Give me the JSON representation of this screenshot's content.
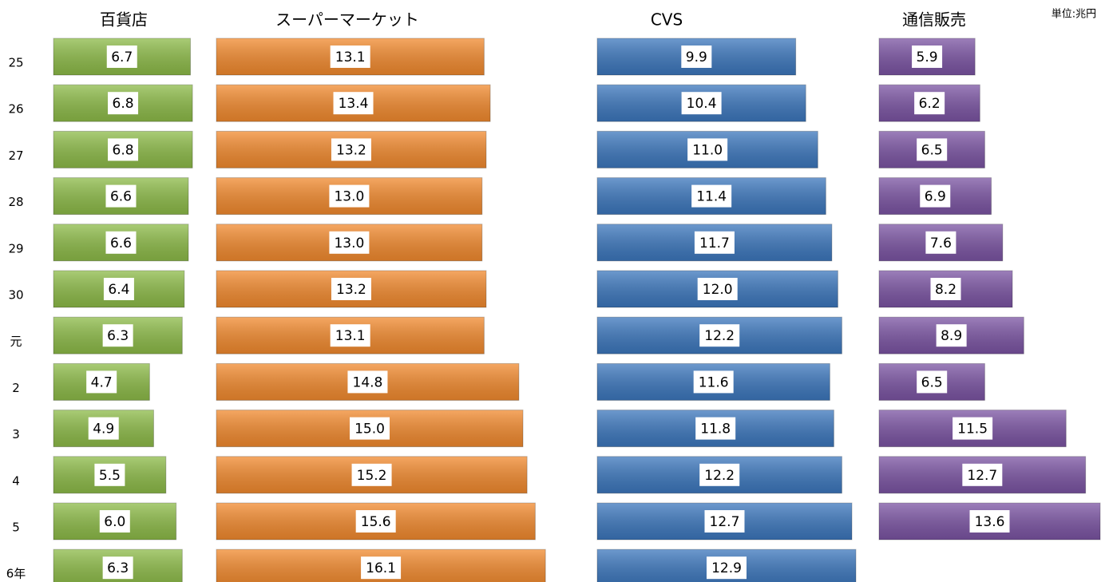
{
  "chart_data": {
    "type": "bar",
    "orientation": "horizontal",
    "unit_label": "単位:兆円",
    "categories": [
      "25",
      "26",
      "27",
      "28",
      "29",
      "30",
      "元",
      "2",
      "3",
      "4",
      "5",
      "6年"
    ],
    "series": [
      {
        "name": "百貨店",
        "color": "#8dbb48",
        "values": [
          6.7,
          6.8,
          6.8,
          6.6,
          6.6,
          6.4,
          6.3,
          4.7,
          4.9,
          5.5,
          6.0,
          6.3
        ],
        "value_labels": [
          "6.7",
          "6.8",
          "6.8",
          "6.6",
          "6.6",
          "6.4",
          "6.3",
          "4.7",
          "4.9",
          "5.5",
          "6.0",
          "6.3"
        ]
      },
      {
        "name": "スーパーマーケット",
        "color": "#f28a2e",
        "values": [
          13.1,
          13.4,
          13.2,
          13.0,
          13.0,
          13.2,
          13.1,
          14.8,
          15.0,
          15.2,
          15.6,
          16.1
        ],
        "value_labels": [
          "13.1",
          "13.4",
          "13.2",
          "13.0",
          "13.0",
          "13.2",
          "13.1",
          "14.8",
          "15.0",
          "15.2",
          "15.6",
          "16.1"
        ]
      },
      {
        "name": "CVS",
        "color": "#3c77bd",
        "values": [
          9.9,
          10.4,
          11.0,
          11.4,
          11.7,
          12.0,
          12.2,
          11.6,
          11.8,
          12.2,
          12.7,
          12.9
        ],
        "value_labels": [
          "9.9",
          "10.4",
          "11.0",
          "11.4",
          "11.7",
          "12.0",
          "12.2",
          "11.6",
          "11.8",
          "12.2",
          "12.7",
          "12.9"
        ]
      },
      {
        "name": "通信販売",
        "color": "#7b54a3",
        "values": [
          5.9,
          6.2,
          6.5,
          6.9,
          7.6,
          8.2,
          8.9,
          6.5,
          11.5,
          12.7,
          13.6,
          null
        ],
        "value_labels": [
          "5.9",
          "6.2",
          "6.5",
          "6.9",
          "7.6",
          "8.2",
          "8.9",
          "6.5",
          "11.5",
          "12.7",
          "13.6",
          null
        ]
      }
    ]
  }
}
